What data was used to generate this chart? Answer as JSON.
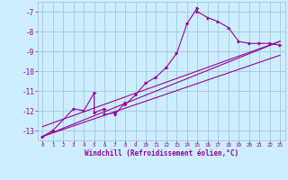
{
  "bg_color": "#cceeff",
  "grid_color": "#aaccdd",
  "line_color": "#990099",
  "marker_color": "#990099",
  "xlabel": "Windchill (Refroidissement éolien,°C)",
  "xlim": [
    -0.5,
    23.5
  ],
  "ylim": [
    -13.5,
    -6.5
  ],
  "yticks": [
    -13,
    -12,
    -11,
    -10,
    -9,
    -8,
    -7
  ],
  "xticks": [
    0,
    1,
    2,
    3,
    4,
    5,
    6,
    7,
    8,
    9,
    10,
    11,
    12,
    13,
    14,
    15,
    16,
    17,
    18,
    19,
    20,
    21,
    22,
    23
  ],
  "series1_x": [
    0,
    1,
    3,
    4,
    5,
    5,
    6,
    6,
    7,
    7,
    8,
    8,
    9,
    10,
    11,
    12,
    13,
    14,
    15,
    15,
    16,
    17,
    18,
    19,
    20,
    21,
    22,
    23
  ],
  "series1_y": [
    -13.3,
    -13.0,
    -11.9,
    -12.0,
    -11.1,
    -12.1,
    -11.9,
    -12.2,
    -12.1,
    -12.2,
    -11.6,
    -11.7,
    -11.2,
    -10.6,
    -10.3,
    -9.8,
    -9.1,
    -7.6,
    -6.8,
    -7.0,
    -7.3,
    -7.5,
    -7.8,
    -8.5,
    -8.6,
    -8.6,
    -8.6,
    -8.7
  ],
  "series2_x": [
    0,
    23
  ],
  "series2_y": [
    -13.3,
    -8.5
  ],
  "series3_x": [
    0,
    23
  ],
  "series3_y": [
    -13.3,
    -9.2
  ],
  "series4_x": [
    0,
    23
  ],
  "series4_y": [
    -12.8,
    -8.5
  ],
  "ylabel_fontsize": 5.5,
  "xlabel_fontsize": 5.5,
  "xtick_fontsize": 4.2,
  "ytick_fontsize": 5.5
}
